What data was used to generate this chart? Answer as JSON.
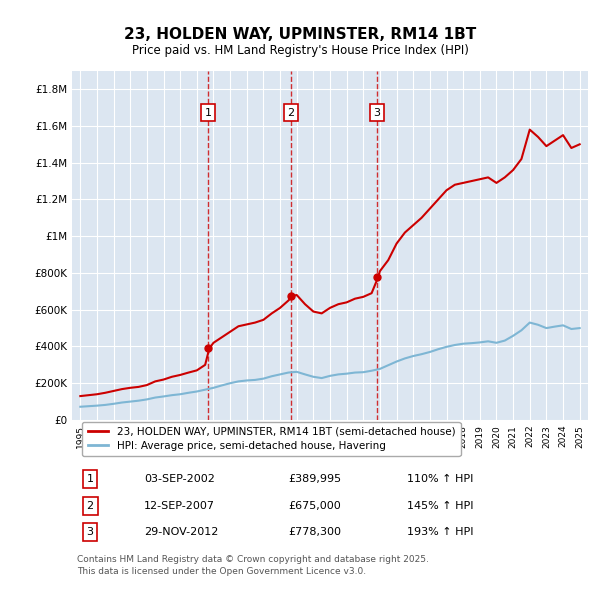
{
  "title": "23, HOLDEN WAY, UPMINSTER, RM14 1BT",
  "subtitle": "Price paid vs. HM Land Registry's House Price Index (HPI)",
  "background_color": "#dce6f1",
  "plot_bg_color": "#dce6f1",
  "red_line_color": "#cc0000",
  "blue_line_color": "#7eb6d4",
  "ylim": [
    0,
    1900000
  ],
  "yticks": [
    0,
    200000,
    400000,
    600000,
    800000,
    1000000,
    1200000,
    1400000,
    1600000,
    1800000
  ],
  "ytick_labels": [
    "£0",
    "£200K",
    "£400K",
    "£600K",
    "£800K",
    "£1M",
    "£1.2M",
    "£1.4M",
    "£1.6M",
    "£1.8M"
  ],
  "sale_dates": [
    "2002-09-03",
    "2007-09-12",
    "2012-11-29"
  ],
  "sale_prices": [
    389995,
    675000,
    778300
  ],
  "sale_labels": [
    "1",
    "2",
    "3"
  ],
  "legend_red": "23, HOLDEN WAY, UPMINSTER, RM14 1BT (semi-detached house)",
  "legend_blue": "HPI: Average price, semi-detached house, Havering",
  "table_rows": [
    [
      "1",
      "03-SEP-2002",
      "£389,995",
      "110% ↑ HPI"
    ],
    [
      "2",
      "12-SEP-2007",
      "£675,000",
      "145% ↑ HPI"
    ],
    [
      "3",
      "29-NOV-2012",
      "£778,300",
      "193% ↑ HPI"
    ]
  ],
  "footer": "Contains HM Land Registry data © Crown copyright and database right 2025.\nThis data is licensed under the Open Government Licence v3.0.",
  "red_hpi_data": {
    "years": [
      1995.0,
      1995.5,
      1996.0,
      1996.5,
      1997.0,
      1997.5,
      1998.0,
      1998.5,
      1999.0,
      1999.5,
      2000.0,
      2000.5,
      2001.0,
      2001.5,
      2002.0,
      2002.5,
      2002.75,
      2003.0,
      2003.5,
      2004.0,
      2004.5,
      2005.0,
      2005.5,
      2006.0,
      2006.5,
      2007.0,
      2007.5,
      2007.75,
      2008.0,
      2008.5,
      2009.0,
      2009.5,
      2010.0,
      2010.5,
      2011.0,
      2011.5,
      2012.0,
      2012.5,
      2012.9,
      2013.0,
      2013.5,
      2014.0,
      2014.5,
      2015.0,
      2015.5,
      2016.0,
      2016.5,
      2017.0,
      2017.5,
      2018.0,
      2018.5,
      2019.0,
      2019.5,
      2020.0,
      2020.5,
      2021.0,
      2021.5,
      2022.0,
      2022.5,
      2023.0,
      2023.5,
      2024.0,
      2024.5,
      2025.0
    ],
    "values": [
      130000,
      135000,
      140000,
      148000,
      158000,
      168000,
      175000,
      180000,
      190000,
      210000,
      220000,
      235000,
      245000,
      258000,
      270000,
      300000,
      389995,
      420000,
      450000,
      480000,
      510000,
      520000,
      530000,
      545000,
      580000,
      610000,
      650000,
      675000,
      680000,
      630000,
      590000,
      580000,
      610000,
      630000,
      640000,
      660000,
      670000,
      690000,
      778300,
      810000,
      870000,
      960000,
      1020000,
      1060000,
      1100000,
      1150000,
      1200000,
      1250000,
      1280000,
      1290000,
      1300000,
      1310000,
      1320000,
      1290000,
      1320000,
      1360000,
      1420000,
      1580000,
      1540000,
      1490000,
      1520000,
      1550000,
      1480000,
      1500000
    ]
  },
  "blue_hpi_data": {
    "years": [
      1995.0,
      1995.5,
      1996.0,
      1996.5,
      1997.0,
      1997.5,
      1998.0,
      1998.5,
      1999.0,
      1999.5,
      2000.0,
      2000.5,
      2001.0,
      2001.5,
      2002.0,
      2002.5,
      2003.0,
      2003.5,
      2004.0,
      2004.5,
      2005.0,
      2005.5,
      2006.0,
      2006.5,
      2007.0,
      2007.5,
      2008.0,
      2008.5,
      2009.0,
      2009.5,
      2010.0,
      2010.5,
      2011.0,
      2011.5,
      2012.0,
      2012.5,
      2013.0,
      2013.5,
      2014.0,
      2014.5,
      2015.0,
      2015.5,
      2016.0,
      2016.5,
      2017.0,
      2017.5,
      2018.0,
      2018.5,
      2019.0,
      2019.5,
      2020.0,
      2020.5,
      2021.0,
      2021.5,
      2022.0,
      2022.5,
      2023.0,
      2023.5,
      2024.0,
      2024.5,
      2025.0
    ],
    "values": [
      72000,
      75000,
      78000,
      82000,
      88000,
      95000,
      100000,
      105000,
      112000,
      122000,
      128000,
      135000,
      140000,
      148000,
      155000,
      165000,
      175000,
      188000,
      200000,
      210000,
      215000,
      218000,
      225000,
      238000,
      248000,
      258000,
      262000,
      248000,
      235000,
      228000,
      240000,
      248000,
      252000,
      258000,
      260000,
      268000,
      278000,
      298000,
      318000,
      335000,
      348000,
      358000,
      370000,
      385000,
      398000,
      408000,
      415000,
      418000,
      422000,
      428000,
      420000,
      432000,
      458000,
      488000,
      530000,
      518000,
      500000,
      508000,
      515000,
      495000,
      500000
    ]
  }
}
